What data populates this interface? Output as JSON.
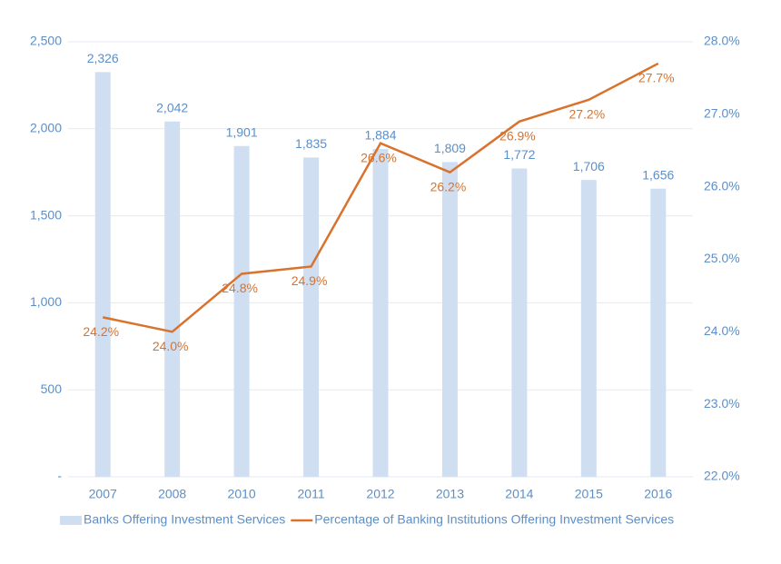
{
  "chart_data": {
    "type": "combo",
    "categories": [
      "2007",
      "2008",
      "2010",
      "2011",
      "2012",
      "2013",
      "2014",
      "2015",
      "2016"
    ],
    "series": [
      {
        "name": "Banks Offering Investment Services",
        "type": "bar",
        "color": "#cfdff1",
        "values": [
          2326,
          2042,
          1901,
          1835,
          1884,
          1809,
          1772,
          1706,
          1656
        ],
        "value_labels": [
          "2,326",
          "2,042",
          "1,901",
          "1,835",
          "1,884",
          "1,809",
          "1,772",
          "1,706",
          "1,656"
        ]
      },
      {
        "name": "Percentage of Banking Institutions Offering Investment Services",
        "type": "line",
        "axis": "y2",
        "color": "#d9722c",
        "values": [
          24.2,
          24.0,
          24.8,
          24.9,
          26.6,
          26.2,
          26.9,
          27.2,
          27.7
        ],
        "value_labels": [
          "24.2%",
          "24.0%",
          "24.8%",
          "24.9%",
          "26.6%",
          "26.2%",
          "26.9%",
          "27.2%",
          "27.7%"
        ]
      }
    ],
    "ylim": [
      0,
      2500
    ],
    "yticks": [
      {
        "value": 0,
        "label": "-"
      },
      500,
      {
        "value": 1000,
        "label": "1,000"
      },
      {
        "value": 1500,
        "label": "1,500"
      },
      {
        "value": 2000,
        "label": "2,000"
      },
      {
        "value": 2500,
        "label": "2,500"
      }
    ],
    "y2lim": [
      22,
      28
    ],
    "y2ticks": [
      {
        "value": 22,
        "label": "22.0%"
      },
      {
        "value": 23,
        "label": "23.0%"
      },
      {
        "value": 24,
        "label": "24.0%"
      },
      {
        "value": 25,
        "label": "25.0%"
      },
      {
        "value": 26,
        "label": "26.0%"
      },
      {
        "value": 27,
        "label": "27.0%"
      },
      {
        "value": 28,
        "label": "28.0%"
      }
    ],
    "grid": true
  }
}
